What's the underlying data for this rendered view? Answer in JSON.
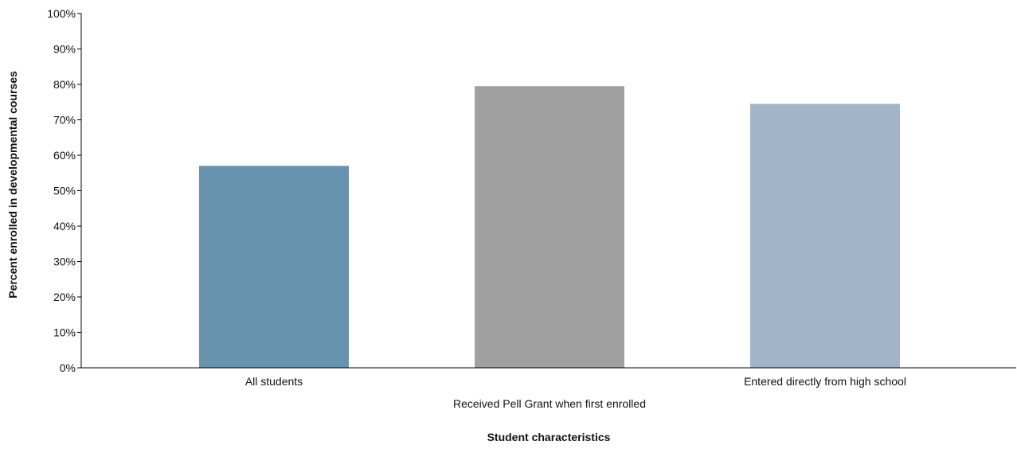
{
  "chart_data": {
    "type": "bar",
    "categories": [
      "All students",
      "Received Pell Grant when first enrolled",
      "Entered directly from high school"
    ],
    "values": [
      57,
      79.5,
      74.5
    ],
    "colors": [
      "#6793ae",
      "#a0a0a0",
      "#a1b5c9"
    ],
    "xlabel": "Student characteristics",
    "ylabel": "Percent enrolled in developmental courses",
    "ylim": [
      0,
      100
    ],
    "y_ticks": [
      0,
      10,
      20,
      30,
      40,
      50,
      60,
      70,
      80,
      90,
      100
    ],
    "y_tick_labels": [
      "0%",
      "10%",
      "20%",
      "30%",
      "40%",
      "50%",
      "60%",
      "70%",
      "80%",
      "90%",
      "100%"
    ],
    "grid": false,
    "legend": "none"
  }
}
